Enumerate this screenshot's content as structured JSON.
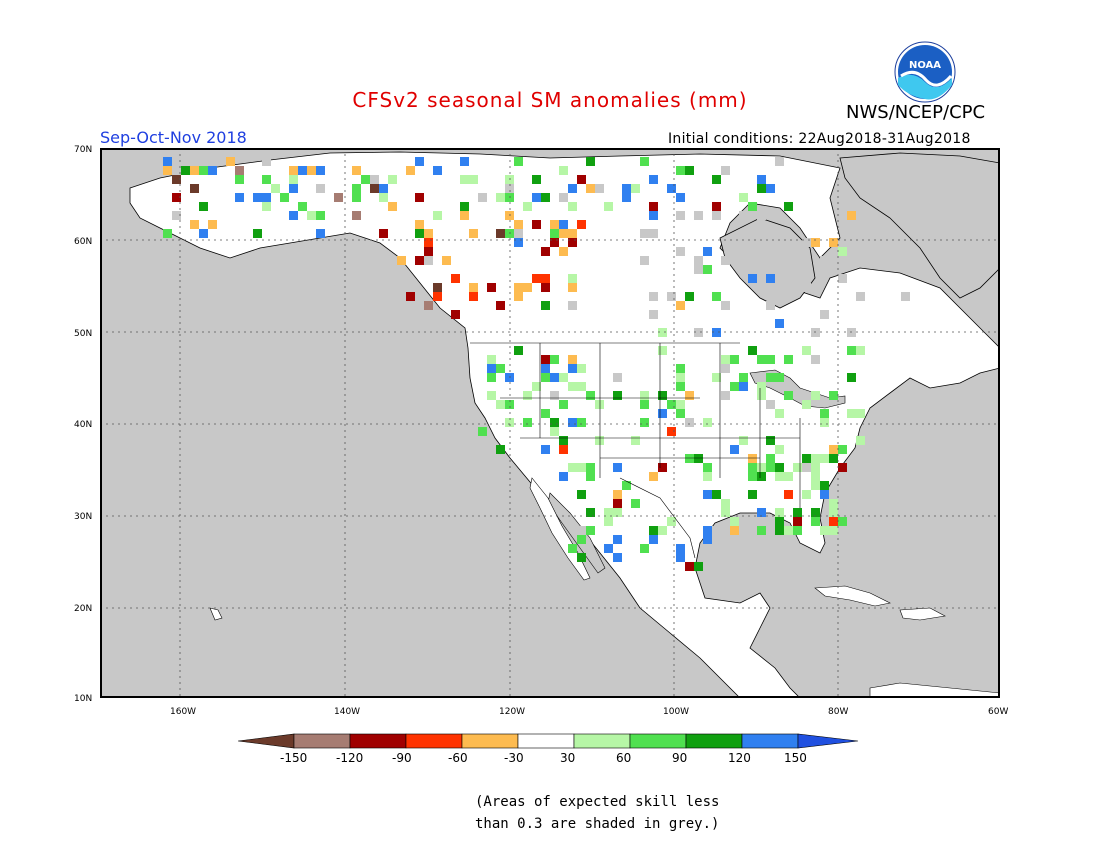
{
  "title": "CFSv2 seasonal SM anomalies (mm)",
  "org": "NWS/NCEP/CPC",
  "logo_text": "NOAA",
  "season": "Sep-Oct-Nov 2018",
  "initial_conditions": "Initial conditions: 22Aug2018-31Aug2018",
  "lat_labels": [
    "70N",
    "60N",
    "50N",
    "40N",
    "30N",
    "20N",
    "10N"
  ],
  "lon_labels": [
    "160W",
    "140W",
    "120W",
    "100W",
    "80W",
    "60W"
  ],
  "colorbar": {
    "ticks": [
      "-150",
      "-120",
      "-90",
      "-60",
      "-30",
      "30",
      "60",
      "90",
      "120",
      "150"
    ],
    "colors": [
      "#6b3a2a",
      "#a67c72",
      "#a00000",
      "#ff3300",
      "#fdbb50",
      "#ffffff",
      "#b6f6a6",
      "#50e050",
      "#10a010",
      "#3080f0",
      "#2050e0"
    ]
  },
  "legend_note": [
    "(Areas of expected skill less",
    "than 0.3 are shaded in grey.)"
  ],
  "colors": {
    "ocean": "#c8c8c8",
    "land": "#ffffff",
    "grey_skill": "#c8c8c8"
  }
}
